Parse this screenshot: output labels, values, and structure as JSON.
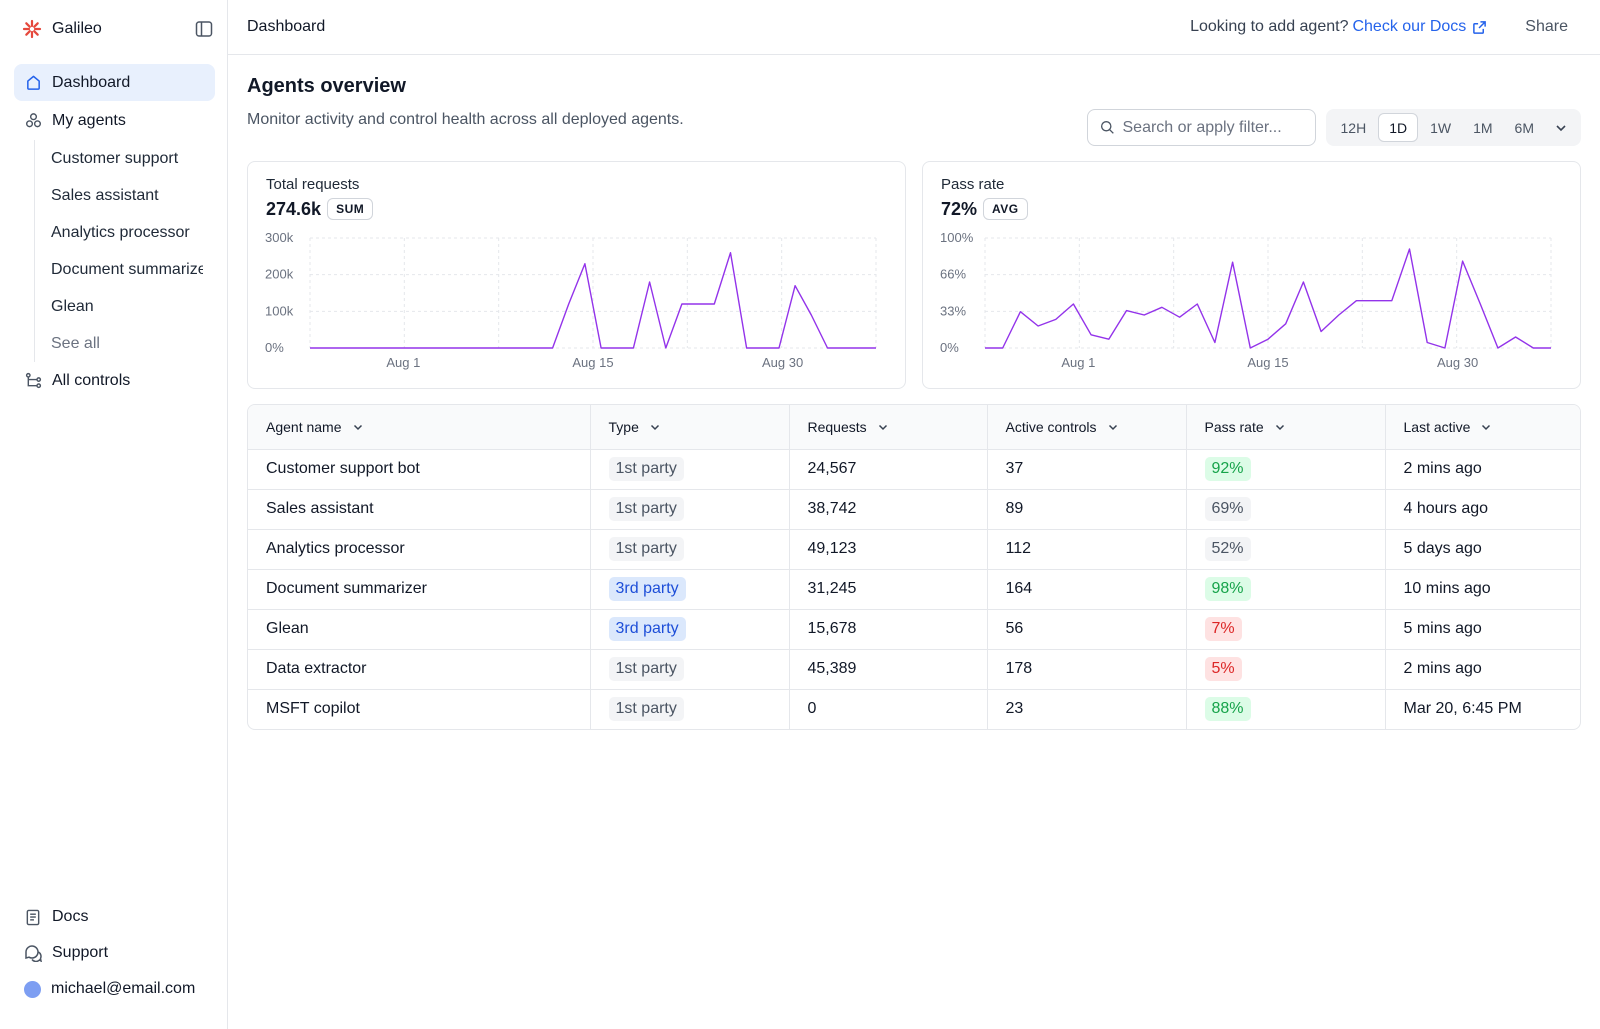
{
  "brand": {
    "name": "Galileo"
  },
  "sidebar": {
    "nav": [
      {
        "label": "Dashboard",
        "icon": "home-icon",
        "active": true
      },
      {
        "label": "My agents",
        "icon": "agents-icon",
        "active": false
      }
    ],
    "agents": [
      "Customer support",
      "Sales assistant",
      "Analytics processor",
      "Document summarizer",
      "Glean"
    ],
    "see_all": "See all",
    "all_controls": "All controls",
    "footer": {
      "docs": "Docs",
      "support": "Support",
      "user_email": "michael@email.com"
    }
  },
  "topbar": {
    "breadcrumb": "Dashboard",
    "hint": "Looking to add agent?",
    "docs_link": "Check our Docs",
    "share": "Share"
  },
  "page": {
    "title": "Agents overview",
    "subtitle": "Monitor activity and control health across all deployed agents."
  },
  "search": {
    "placeholder": "Search or apply filter..."
  },
  "time_range": {
    "options": [
      "12H",
      "1D",
      "1W",
      "1M",
      "6M"
    ],
    "selected": "1D"
  },
  "cards": {
    "requests": {
      "title": "Total requests",
      "value": "274.6k",
      "badge": "SUM"
    },
    "pass_rate": {
      "title": "Pass rate",
      "value": "72%",
      "badge": "AVG"
    }
  },
  "chart_data": [
    {
      "type": "line",
      "title": "Total requests",
      "y_ticks": [
        "0%",
        "100k",
        "200k",
        "300k"
      ],
      "x_ticks": [
        "Aug 1",
        "Aug 15",
        "Aug 30"
      ],
      "ylim": [
        0,
        300000
      ],
      "color": "#9333ea",
      "values": [
        0,
        0,
        0,
        0,
        0,
        0,
        0,
        0,
        0,
        0,
        0,
        0,
        0,
        0,
        0,
        0,
        120000,
        230000,
        0,
        0,
        0,
        180000,
        0,
        120000,
        120000,
        120000,
        260000,
        0,
        0,
        0,
        170000,
        90000,
        0,
        0,
        0,
        0
      ]
    },
    {
      "type": "line",
      "title": "Pass rate",
      "y_ticks": [
        "0%",
        "33%",
        "66%",
        "100%"
      ],
      "x_ticks": [
        "Aug 1",
        "Aug 15",
        "Aug 30"
      ],
      "ylim": [
        0,
        100
      ],
      "color": "#9333ea",
      "values": [
        0,
        0,
        33,
        20,
        26,
        40,
        12,
        8,
        34,
        30,
        37,
        28,
        40,
        5,
        78,
        0,
        8,
        22,
        60,
        15,
        30,
        43,
        43,
        43,
        90,
        5,
        0,
        79,
        40,
        0,
        10,
        0,
        0
      ]
    }
  ],
  "table": {
    "columns": [
      "Agent name",
      "Type",
      "Requests",
      "Active controls",
      "Pass rate",
      "Last active"
    ],
    "rows": [
      {
        "name": "Customer support bot",
        "type": "1st party",
        "requests": "24,567",
        "controls": "37",
        "pass_rate": "92%",
        "last_active": "2 mins ago"
      },
      {
        "name": "Sales assistant",
        "type": "1st party",
        "requests": "38,742",
        "controls": "89",
        "pass_rate": "69%",
        "last_active": "4 hours ago"
      },
      {
        "name": "Analytics processor",
        "type": "1st party",
        "requests": "49,123",
        "controls": "112",
        "pass_rate": "52%",
        "last_active": "5 days ago"
      },
      {
        "name": "Document summarizer",
        "type": "3rd party",
        "requests": "31,245",
        "controls": "164",
        "pass_rate": "98%",
        "last_active": "10 mins ago"
      },
      {
        "name": "Glean",
        "type": "3rd party",
        "requests": "15,678",
        "controls": "56",
        "pass_rate": "7%",
        "last_active": "5 mins ago"
      },
      {
        "name": "Data extractor",
        "type": "1st party",
        "requests": "45,389",
        "controls": "178",
        "pass_rate": "5%",
        "last_active": "2 mins ago"
      },
      {
        "name": "MSFT copilot",
        "type": "1st party",
        "requests": "0",
        "controls": "23",
        "pass_rate": "88%",
        "last_active": "Mar 20, 6:45 PM"
      }
    ]
  },
  "colors": {
    "accent": "#2563eb",
    "active_nav": "#e8f0fd",
    "line": "#9333ea",
    "logo": "#e5483c"
  }
}
